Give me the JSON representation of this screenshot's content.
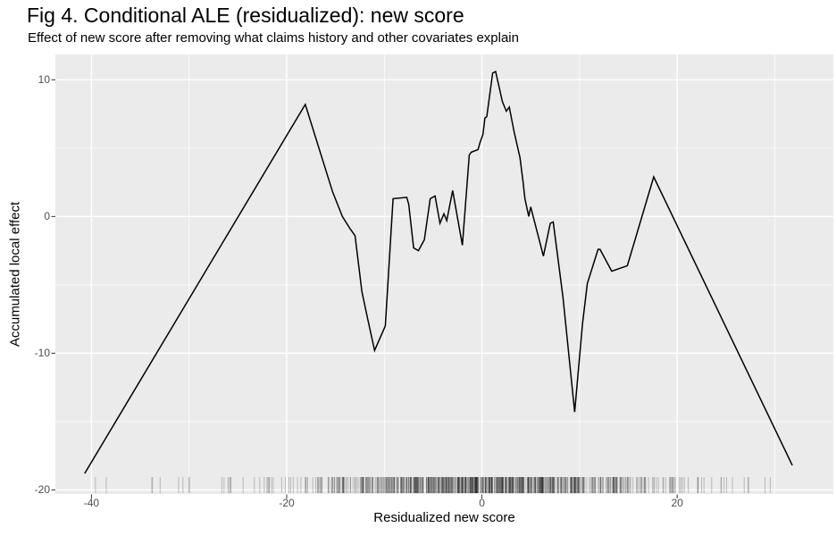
{
  "chart_data": {
    "type": "line",
    "title": "Fig 4. Conditional ALE (residualized): new score",
    "subtitle": "Effect of new score after removing what claims history and other covariates explain",
    "xlabel": "Residualized new score",
    "ylabel": "Accumulated local effect",
    "xlim": [
      -43.7,
      36.0
    ],
    "ylim": [
      -20.3,
      11.85
    ],
    "grid": true,
    "legend": "none",
    "panel_bg": "#EBEBEB",
    "grid_color": "#FFFFFF",
    "line_color": "#000000",
    "tick_mark_color": "#333333",
    "tick_label_color": "#4d4d4d",
    "x_ticks": {
      "major": [
        {
          "value": -40,
          "label": "-40"
        },
        {
          "value": -20,
          "label": "-20"
        },
        {
          "value": 0,
          "label": "0"
        },
        {
          "value": 20,
          "label": "20"
        }
      ],
      "minor": [
        -30,
        -10,
        10,
        30
      ]
    },
    "y_ticks": {
      "major": [
        {
          "value": 10,
          "label": "10"
        },
        {
          "value": 0,
          "label": "0"
        },
        {
          "value": -10,
          "label": "-10"
        },
        {
          "value": -20,
          "label": "-20"
        }
      ],
      "minor": [
        5,
        -5,
        -15
      ]
    },
    "series": [
      {
        "name": "conditional-ale",
        "points": [
          [
            -40.7,
            -18.8
          ],
          [
            -18.1,
            8.2
          ],
          [
            -15.3,
            1.8
          ],
          [
            -14.3,
            0.0
          ],
          [
            -13.5,
            -0.9
          ],
          [
            -13.0,
            -1.4
          ],
          [
            -12.3,
            -5.5
          ],
          [
            -11.7,
            -7.5
          ],
          [
            -11.0,
            -9.8
          ],
          [
            -9.9,
            -8.0
          ],
          [
            -9.1,
            1.3
          ],
          [
            -7.7,
            1.4
          ],
          [
            -7.5,
            0.9
          ],
          [
            -7.0,
            -2.3
          ],
          [
            -6.5,
            -2.5
          ],
          [
            -5.9,
            -1.7
          ],
          [
            -5.3,
            1.3
          ],
          [
            -4.8,
            1.5
          ],
          [
            -4.3,
            -0.5
          ],
          [
            -3.9,
            0.2
          ],
          [
            -3.6,
            -0.3
          ],
          [
            -3.0,
            1.9
          ],
          [
            -2.0,
            -2.1
          ],
          [
            -1.3,
            4.5
          ],
          [
            -1.1,
            4.7
          ],
          [
            -0.4,
            4.9
          ],
          [
            -0.2,
            5.4
          ],
          [
            0.1,
            6.0
          ],
          [
            0.3,
            7.2
          ],
          [
            0.5,
            7.3
          ],
          [
            1.1,
            10.5
          ],
          [
            1.4,
            10.6
          ],
          [
            2.1,
            8.4
          ],
          [
            2.5,
            7.7
          ],
          [
            2.8,
            8.0
          ],
          [
            3.3,
            6.2
          ],
          [
            3.9,
            4.3
          ],
          [
            4.2,
            2.6
          ],
          [
            4.4,
            1.3
          ],
          [
            4.8,
            0.0
          ],
          [
            5.0,
            0.7
          ],
          [
            6.3,
            -2.9
          ],
          [
            7.0,
            -0.5
          ],
          [
            7.3,
            -0.4
          ],
          [
            8.3,
            -5.9
          ],
          [
            9.5,
            -14.3
          ],
          [
            10.3,
            -7.9
          ],
          [
            10.8,
            -4.9
          ],
          [
            11.9,
            -2.4
          ],
          [
            12.1,
            -2.4
          ],
          [
            13.3,
            -4.0
          ],
          [
            14.9,
            -3.6
          ],
          [
            17.6,
            2.9
          ],
          [
            31.8,
            -18.2
          ]
        ]
      }
    ],
    "rug": {
      "color": "rgba(0,0,0,0.22)",
      "segments": [
        {
          "from": -40.7,
          "to": -37,
          "count": 2
        },
        {
          "from": -37,
          "to": -31,
          "count": 4
        },
        {
          "from": -31,
          "to": -26,
          "count": 6
        },
        {
          "from": -26,
          "to": -22,
          "count": 8
        },
        {
          "from": -22,
          "to": -19,
          "count": 10
        },
        {
          "from": -19,
          "to": -16,
          "count": 16
        },
        {
          "from": -16,
          "to": -13,
          "count": 32
        },
        {
          "from": -13,
          "to": -10,
          "count": 48
        },
        {
          "from": -10,
          "to": -7,
          "count": 62
        },
        {
          "from": -7,
          "to": -4,
          "count": 82
        },
        {
          "from": -4,
          "to": -1,
          "count": 95
        },
        {
          "from": -1,
          "to": 2,
          "count": 95
        },
        {
          "from": 2,
          "to": 5,
          "count": 90
        },
        {
          "from": 5,
          "to": 8,
          "count": 80
        },
        {
          "from": 8,
          "to": 11,
          "count": 62
        },
        {
          "from": 11,
          "to": 14,
          "count": 46
        },
        {
          "from": 14,
          "to": 17,
          "count": 30
        },
        {
          "from": 17,
          "to": 20,
          "count": 18
        },
        {
          "from": 20,
          "to": 23,
          "count": 10
        },
        {
          "from": 23,
          "to": 26,
          "count": 6
        },
        {
          "from": 26,
          "to": 29,
          "count": 3
        },
        {
          "from": 29,
          "to": 31.8,
          "count": 2
        }
      ]
    }
  }
}
